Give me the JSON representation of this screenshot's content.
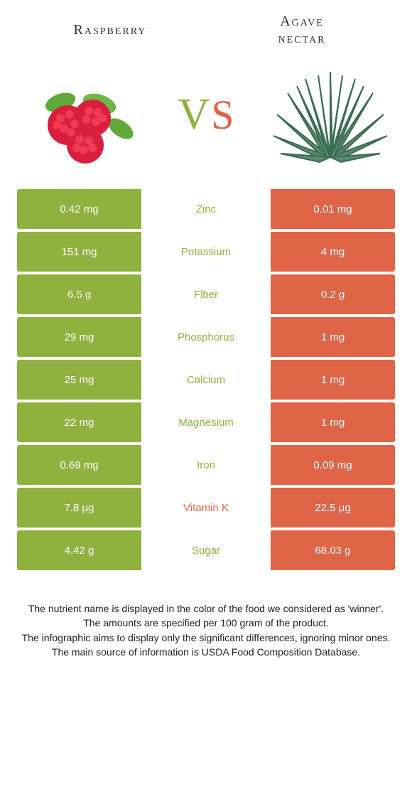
{
  "colors": {
    "left": "#8fb23f",
    "right": "#e06548",
    "text": "#222222",
    "bg": "#ffffff"
  },
  "header": {
    "left_title": "Raspberry",
    "right_title_line1": "Agave",
    "right_title_line2": "nectar",
    "vs_v": "V",
    "vs_s": "S"
  },
  "rows": [
    {
      "left": "0.42 mg",
      "label": "Zinc",
      "right": "0.01 mg",
      "winner": "left"
    },
    {
      "left": "151 mg",
      "label": "Potassium",
      "right": "4 mg",
      "winner": "left"
    },
    {
      "left": "6.5 g",
      "label": "Fiber",
      "right": "0.2 g",
      "winner": "left"
    },
    {
      "left": "29 mg",
      "label": "Phosphorus",
      "right": "1 mg",
      "winner": "left"
    },
    {
      "left": "25 mg",
      "label": "Calcium",
      "right": "1 mg",
      "winner": "left"
    },
    {
      "left": "22 mg",
      "label": "Magnesium",
      "right": "1 mg",
      "winner": "left"
    },
    {
      "left": "0.69 mg",
      "label": "Iron",
      "right": "0.09 mg",
      "winner": "left"
    },
    {
      "left": "7.8 µg",
      "label": "Vitamin K",
      "right": "22.5 µg",
      "winner": "right"
    },
    {
      "left": "4.42 g",
      "label": "Sugar",
      "right": "68.03 g",
      "winner": "left"
    }
  ],
  "footer": {
    "line1": "The nutrient name is displayed in the color of the food we considered as 'winner'.",
    "line2": "The amounts are specified per 100 gram of the product.",
    "line3": "The infographic aims to display only the significant differences, ignoring minor ones.",
    "line4": "The main source of information is USDA Food Composition Database."
  }
}
